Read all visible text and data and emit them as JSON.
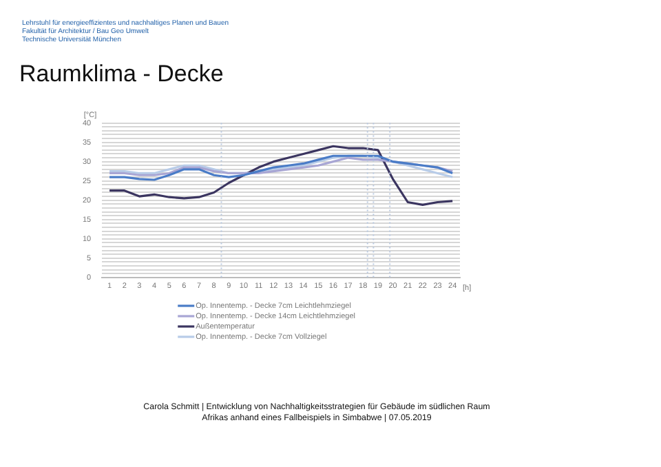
{
  "chart_data": {
    "type": "line",
    "title": "Raumklima - Decke",
    "annotations": [
      "Lehrstuhl für energieeffizientes und nachhaltiges Planen und Bauen",
      "Fakultät für Architektur / Bau Geo Umwelt",
      "Technische Universität München",
      "Carola Schmitt | Entwicklung von Nachhaltigkeitsstrategien  für Gebäude im südlichen Raum",
      "Afrikas anhand eines Fallbeispiels in Simbabwe | 07.05.2019"
    ],
    "xlabel": "[h]",
    "ylabel": "[°C]",
    "x": [
      1,
      2,
      3,
      4,
      5,
      6,
      7,
      8,
      9,
      10,
      11,
      12,
      13,
      14,
      15,
      16,
      17,
      18,
      19,
      20,
      21,
      22,
      23,
      24
    ],
    "xlim": [
      0.5,
      24.5
    ],
    "xticks": [
      1,
      2,
      3,
      4,
      5,
      6,
      7,
      8,
      9,
      10,
      11,
      12,
      13,
      14,
      15,
      16,
      17,
      18,
      19,
      20,
      21,
      22,
      23,
      24
    ],
    "ylim": [
      0,
      40
    ],
    "yticks": [
      0,
      {
        "value": 1,
        "label": null
      },
      {
        "value": 2,
        "label": null
      },
      {
        "value": 3,
        "label": null
      },
      {
        "value": 4,
        "label": null
      },
      5,
      {
        "value": 6,
        "label": null
      },
      {
        "value": 7,
        "label": null
      },
      {
        "value": 8,
        "label": null
      },
      {
        "value": 9,
        "label": null
      },
      10,
      {
        "value": 11,
        "label": null
      },
      {
        "value": 12,
        "label": null
      },
      {
        "value": 13,
        "label": null
      },
      {
        "value": 14,
        "label": null
      },
      15,
      {
        "value": 16,
        "label": null
      },
      {
        "value": 17,
        "label": null
      },
      {
        "value": 18,
        "label": null
      },
      {
        "value": 19,
        "label": null
      },
      20,
      {
        "value": 21,
        "label": null
      },
      {
        "value": 22,
        "label": null
      },
      {
        "value": 23,
        "label": null
      },
      {
        "value": 24,
        "label": null
      },
      25,
      {
        "value": 26,
        "label": null
      },
      {
        "value": 27,
        "label": null
      },
      {
        "value": 28,
        "label": null
      },
      {
        "value": 29,
        "label": null
      },
      30,
      {
        "value": 31,
        "label": null
      },
      {
        "value": 32,
        "label": null
      },
      {
        "value": 33,
        "label": null
      },
      {
        "value": 34,
        "label": null
      },
      35,
      {
        "value": 36,
        "label": null
      },
      {
        "value": 37,
        "label": null
      },
      {
        "value": 38,
        "label": null
      },
      {
        "value": 39,
        "label": null
      },
      40
    ],
    "grid": "y",
    "legend": "bottom",
    "marker": "none",
    "line_style": "solid",
    "ref_lines": [
      {
        "axis": "x",
        "value": 8.5,
        "color": "#b8c8e0",
        "line_style": "dotted"
      },
      {
        "axis": "x",
        "value": 18.3,
        "color": "#b8c8e0",
        "line_style": "dotted"
      },
      {
        "axis": "x",
        "value": 18.7,
        "color": "#b8c8e0",
        "line_style": "dotted"
      },
      {
        "axis": "x",
        "value": 19.8,
        "color": "#b8c8e0",
        "line_style": "dotted"
      }
    ],
    "series": [
      {
        "name": "Op. Innentemp. - Decke 7cm Leichtlehmziegel",
        "color": "#4a7cc7",
        "values": [
          26,
          26,
          25.5,
          25.3,
          26.5,
          28,
          28,
          26.5,
          26,
          26.5,
          27.5,
          28.5,
          29,
          29.5,
          30.5,
          31.5,
          31.5,
          31.5,
          31.5,
          30,
          29.5,
          29,
          28.5,
          27
        ]
      },
      {
        "name": "Op. Innentemp. - Decke 14cm Leichtlehmziegel",
        "color": "#a8a6d4",
        "values": [
          27,
          27,
          26.5,
          26.5,
          27,
          28.5,
          28.5,
          27.5,
          27,
          27,
          27,
          27.5,
          28,
          28.5,
          29,
          30,
          31,
          30.5,
          30.5,
          30,
          29.5,
          29,
          28.5,
          27.5
        ]
      },
      {
        "name": "Außentemperatur",
        "color": "#3b3560",
        "values": [
          22.5,
          22.5,
          21,
          21.5,
          20.8,
          20.5,
          20.8,
          22,
          24.5,
          26.5,
          28.5,
          30,
          31,
          32,
          33,
          34,
          33.5,
          33.5,
          33,
          25.5,
          19.5,
          18.8,
          19.5,
          19.8
        ]
      },
      {
        "name": "Op. Innentemp. - Decke 7cm Vollziegel",
        "color": "#b8cce8",
        "values": [
          27.5,
          27.5,
          27,
          27,
          28,
          29,
          29,
          28,
          27,
          27,
          27.5,
          28,
          28.5,
          29,
          30,
          31,
          31.5,
          31.5,
          31,
          30,
          29,
          28,
          27,
          26
        ]
      }
    ]
  }
}
